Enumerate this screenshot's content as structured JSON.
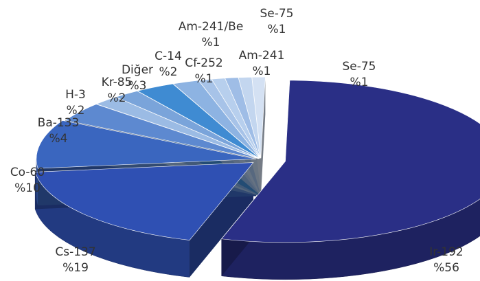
{
  "chart_data": {
    "type": "pie",
    "title": "",
    "unit_prefix": "%",
    "slices": [
      {
        "name": "Ir-192",
        "value": 56,
        "label": "%56",
        "color": "#2a2f86"
      },
      {
        "name": "Cs-137",
        "value": 19,
        "label": "%19",
        "color": "#2f50b3"
      },
      {
        "name": "Co-60",
        "value": 10,
        "label": "%10",
        "color": "#3a66bf"
      },
      {
        "name": "Ba-133",
        "value": 4,
        "label": "%4",
        "color": "#5d89d0"
      },
      {
        "name": "H-3",
        "value": 2,
        "label": "%2",
        "color": "#9bbbe4"
      },
      {
        "name": "Kr-85",
        "value": 2,
        "label": "%2",
        "color": "#7aa4da"
      },
      {
        "name": "Diğer",
        "value": 3,
        "label": "%3",
        "color": "#3f8bd2"
      },
      {
        "name": "C-14",
        "value": 2,
        "label": "%2",
        "color": "#8db3e2"
      },
      {
        "name": "Cf-252",
        "value": 1,
        "label": "%1",
        "color": "#a7c3e8"
      },
      {
        "name": "Am-241/Be",
        "value": 1,
        "label": "%1",
        "color": "#b7cfed"
      },
      {
        "name": "Am-241",
        "value": 1,
        "label": "%1",
        "color": "#9fbde6"
      },
      {
        "name": "Se-75",
        "value": 1,
        "label": "%1",
        "color": "#c3d6ef"
      },
      {
        "name": "Se-75",
        "value": 1,
        "label": "%1",
        "color": "#d4e1f3"
      }
    ]
  }
}
